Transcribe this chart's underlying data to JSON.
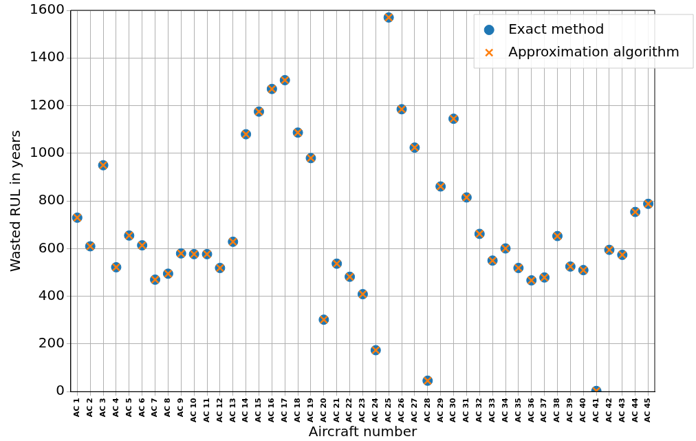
{
  "chart_data": {
    "type": "scatter",
    "xlabel": "Aircraft number",
    "ylabel": "Wasted RUL in years",
    "categories": [
      "AC 1",
      "AC 2",
      "AC 3",
      "AC 4",
      "AC 5",
      "AC 6",
      "AC 7",
      "AC 8",
      "AC 9",
      "AC 10",
      "AC 11",
      "AC 12",
      "AC 13",
      "AC 14",
      "AC 15",
      "AC 16",
      "AC 17",
      "AC 18",
      "AC 19",
      "AC 20",
      "AC 21",
      "AC 22",
      "AC 23",
      "AC 24",
      "AC 25",
      "AC 26",
      "AC 27",
      "AC 28",
      "AC 29",
      "AC 30",
      "AC 31",
      "AC 32",
      "AC 33",
      "AC 34",
      "AC 35",
      "AC 36",
      "AC 37",
      "AC 38",
      "AC 39",
      "AC 40",
      "AC 41",
      "AC 42",
      "AC 43",
      "AC 44",
      "AC 45"
    ],
    "series": [
      {
        "name": "Exact method",
        "color": "#1f77b4",
        "marker": "circle",
        "values": [
          730,
          610,
          950,
          522,
          655,
          614,
          470,
          495,
          580,
          577,
          577,
          519,
          629,
          1080,
          1175,
          1270,
          1307,
          1087,
          980,
          302,
          537,
          482,
          409,
          174,
          1570,
          1185,
          1024,
          46,
          861,
          1145,
          815,
          662,
          550,
          601,
          519,
          467,
          479,
          653,
          525,
          510,
          3,
          595,
          574,
          754,
          788
        ]
      },
      {
        "name": "Approximation algorithm",
        "color": "#ff7f0e",
        "marker": "cross",
        "values": [
          730,
          610,
          950,
          522,
          655,
          614,
          470,
          495,
          580,
          577,
          577,
          519,
          629,
          1080,
          1175,
          1270,
          1307,
          1087,
          980,
          302,
          537,
          482,
          409,
          174,
          1570,
          1185,
          1024,
          46,
          861,
          1145,
          815,
          662,
          550,
          601,
          519,
          467,
          479,
          653,
          525,
          510,
          3,
          595,
          574,
          754,
          788
        ]
      }
    ],
    "ylim": [
      0,
      1600
    ],
    "yticks": [
      0,
      200,
      400,
      600,
      800,
      1000,
      1200,
      1400,
      1600
    ],
    "grid": true,
    "legend": "top right"
  }
}
